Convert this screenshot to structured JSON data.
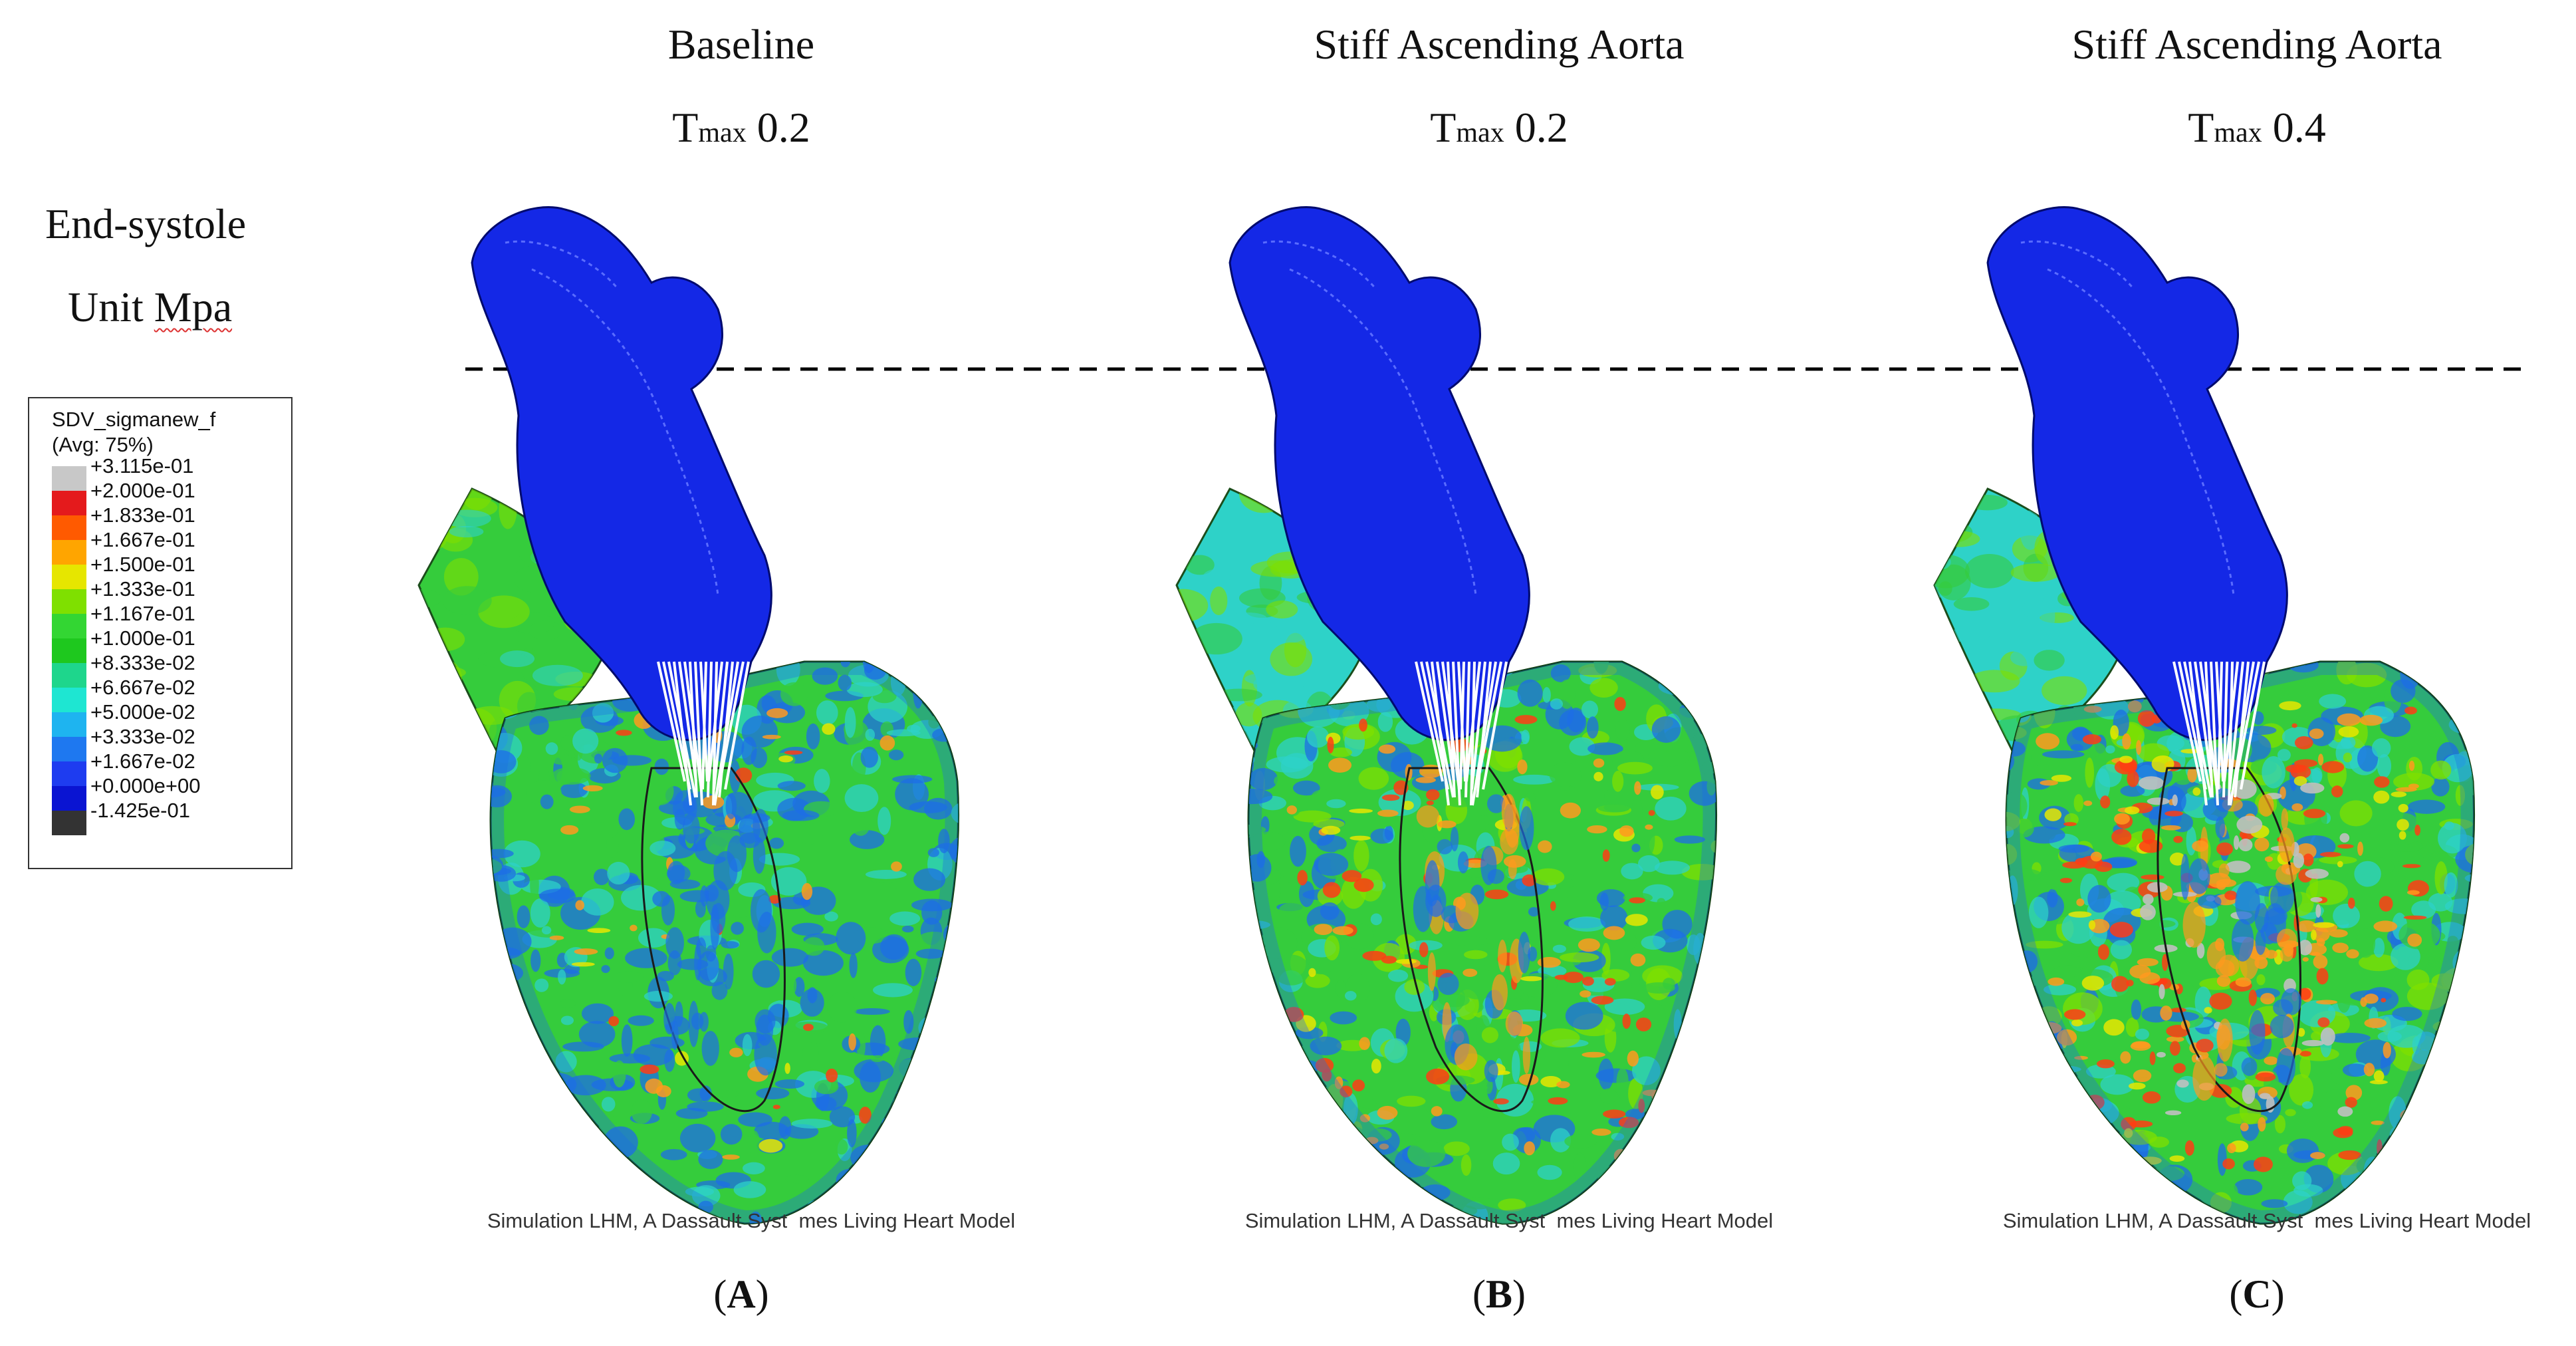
{
  "header": {
    "left_line1": "End-systole",
    "left_line2_prefix": "Unit ",
    "left_line2_unit": "Mpa"
  },
  "panels": [
    {
      "title": "Baseline",
      "tmax_label": "T",
      "tmax_sub": "max",
      "tmax_value": "0.2",
      "label_open": "(",
      "label_letter": "A",
      "label_close": ")",
      "credit": "Simulation LHM, A Dassault Syst  mes Living Heart Model"
    },
    {
      "title": "Stiff Ascending Aorta",
      "tmax_label": "T",
      "tmax_sub": "max",
      "tmax_value": "0.2",
      "label_open": "(",
      "label_letter": "B",
      "label_close": ")",
      "credit": "Simulation LHM, A Dassault Syst  mes Living Heart Model"
    },
    {
      "title": "Stiff Ascending Aorta",
      "tmax_label": "T",
      "tmax_sub": "max",
      "tmax_value": "0.4",
      "label_open": "(",
      "label_letter": "C",
      "label_close": ")",
      "credit": "Simulation LHM, A Dassault Syst  mes Living Heart Model"
    }
  ],
  "legend": {
    "title": "SDV_sigmanew_f",
    "subtitle": "(Avg: 75%)",
    "entries": [
      {
        "value": "+3.115e-01",
        "color": "#c8c8c8"
      },
      {
        "value": "+2.000e-01",
        "color": "#e41a1c"
      },
      {
        "value": "+1.833e-01",
        "color": "#ff5a00"
      },
      {
        "value": "+1.667e-01",
        "color": "#ffa500"
      },
      {
        "value": "+1.500e-01",
        "color": "#e6e600"
      },
      {
        "value": "+1.333e-01",
        "color": "#7fe000"
      },
      {
        "value": "+1.167e-01",
        "color": "#33d633"
      },
      {
        "value": "+1.000e-01",
        "color": "#1ec81e"
      },
      {
        "value": "+8.333e-02",
        "color": "#1ed68c"
      },
      {
        "value": "+6.667e-02",
        "color": "#1ee6d2"
      },
      {
        "value": "+5.000e-02",
        "color": "#1eb4f0"
      },
      {
        "value": "+3.333e-02",
        "color": "#1e78f0"
      },
      {
        "value": "+1.667e-02",
        "color": "#1e3cf0"
      },
      {
        "value": "+0.000e+00",
        "color": "#0a14d2"
      },
      {
        "value": "-1.425e-01",
        "color": "#333333"
      }
    ]
  },
  "colors": {
    "aorta": "#1428e6",
    "tissue_green": "#35cc3c",
    "tissue_cyan": "#2ed2c8",
    "tissue_blue": "#1e6ee6",
    "stress_red": "#ff3c14",
    "stress_orange": "#ff9a1e",
    "stress_grey": "#c0c0c0",
    "dashed_line": "#000000"
  }
}
